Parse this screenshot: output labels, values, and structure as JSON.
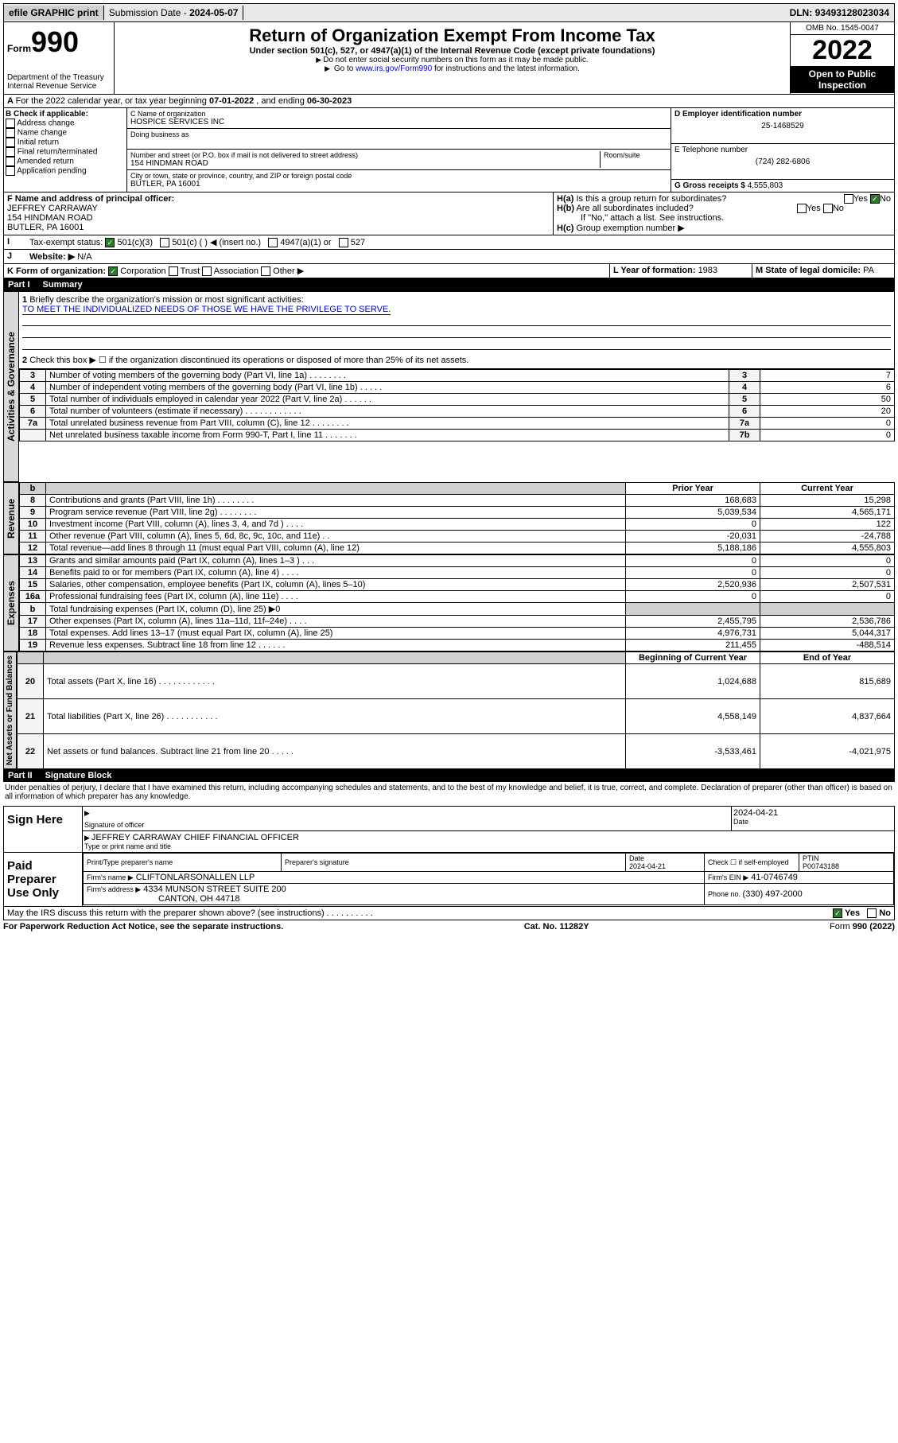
{
  "topbar": {
    "efile": "efile GRAPHIC print",
    "submission_label": "Submission Date - ",
    "submission_date": "2024-05-07",
    "dln_label": "DLN: ",
    "dln": "93493128023034"
  },
  "header": {
    "form_prefix": "Form",
    "form_no": "990",
    "dept": "Department of the Treasury\nInternal Revenue Service",
    "title": "Return of Organization Exempt From Income Tax",
    "subtitle": "Under section 501(c), 527, or 4947(a)(1) of the Internal Revenue Code (except private foundations)",
    "note1": "Do not enter social security numbers on this form as it may be made public.",
    "note2_pre": "Go to ",
    "note2_link": "www.irs.gov/Form990",
    "note2_post": " for instructions and the latest information.",
    "omb": "OMB No. 1545-0047",
    "year": "2022",
    "otp": "Open to Public Inspection"
  },
  "sectionA": {
    "text_pre": "For the 2022 calendar year, or tax year beginning ",
    "begin": "07-01-2022",
    "mid": " , and ending ",
    "end": "06-30-2023"
  },
  "boxB": {
    "label": "B Check if applicable:",
    "items": [
      "Address change",
      "Name change",
      "Initial return",
      "Final return/terminated",
      "Amended return",
      "Application pending"
    ]
  },
  "boxC": {
    "name_label": "C Name of organization",
    "name": "HOSPICE SERVICES INC",
    "dba_label": "Doing business as",
    "addr_label": "Number and street (or P.O. box if mail is not delivered to street address)",
    "room_label": "Room/suite",
    "addr": "154 HINDMAN ROAD",
    "city_label": "City or town, state or province, country, and ZIP or foreign postal code",
    "city": "BUTLER, PA  16001"
  },
  "boxD": {
    "label": "D Employer identification number",
    "value": "25-1468529"
  },
  "boxE": {
    "label": "E Telephone number",
    "value": "(724) 282-6806"
  },
  "boxG": {
    "label": "G Gross receipts $ ",
    "value": "4,555,803"
  },
  "boxF": {
    "label": "F Name and address of principal officer:",
    "name": "JEFFREY CARRAWAY",
    "addr1": "154 HINDMAN ROAD",
    "addr2": "BUTLER, PA  16001"
  },
  "boxH": {
    "ha": "Is this a group return for subordinates?",
    "hb": "Are all subordinates included?",
    "hnote": "If \"No,\" attach a list. See instructions.",
    "hc": "Group exemption number ▶",
    "yes": "Yes",
    "no": "No"
  },
  "boxI": {
    "label": "Tax-exempt status:",
    "opts": [
      "501(c)(3)",
      "501(c) (  ) ◀ (insert no.)",
      "4947(a)(1) or",
      "527"
    ]
  },
  "boxJ": {
    "label": "Website: ▶",
    "value": "N/A"
  },
  "boxK": {
    "label": "K Form of organization:",
    "opts": [
      "Corporation",
      "Trust",
      "Association",
      "Other ▶"
    ]
  },
  "boxL": {
    "label": "L Year of formation: ",
    "value": "1983"
  },
  "boxM": {
    "label": "M State of legal domicile: ",
    "value": "PA"
  },
  "part1": {
    "num": "Part I",
    "title": "Summary"
  },
  "summary": {
    "q1_label": "Briefly describe the organization's mission or most significant activities:",
    "q1_text": "TO MEET THE INDIVIDUALIZED NEEDS OF THOSE WE HAVE THE PRIVILEGE TO SERVE.",
    "q2": "Check this box ▶ ☐  if the organization discontinued its operations or disposed of more than 25% of its net assets.",
    "sections": {
      "gov": "Activities & Governance",
      "rev": "Revenue",
      "exp": "Expenses",
      "net": "Net Assets or Fund Balances"
    },
    "col_prior": "Prior Year",
    "col_current": "Current Year",
    "col_begin": "Beginning of Current Year",
    "col_end": "End of Year",
    "gov_rows": [
      {
        "n": "3",
        "d": "Number of voting members of the governing body (Part VI, line 1a)  .    .    .    .    .    .    .    .",
        "rn": "3",
        "v": "7"
      },
      {
        "n": "4",
        "d": "Number of independent voting members of the governing body (Part VI, line 1b)  .    .    .    .    .",
        "rn": "4",
        "v": "6"
      },
      {
        "n": "5",
        "d": "Total number of individuals employed in calendar year 2022 (Part V, line 2a)  .    .    .    .    .    .",
        "rn": "5",
        "v": "50"
      },
      {
        "n": "6",
        "d": "Total number of volunteers (estimate if necessary)  .    .    .    .    .    .    .    .    .    .    .    .",
        "rn": "6",
        "v": "20"
      },
      {
        "n": "7a",
        "d": "Total unrelated business revenue from Part VIII, column (C), line 12  .    .    .    .    .    .    .    .",
        "rn": "7a",
        "v": "0"
      },
      {
        "n": "",
        "d": "Net unrelated business taxable income from Form 990-T, Part I, line 11  .    .    .    .    .    .    .",
        "rn": "7b",
        "v": "0"
      }
    ],
    "rev_rows": [
      {
        "n": "8",
        "d": "Contributions and grants (Part VIII, line 1h)  .    .    .    .    .    .    .    .",
        "p": "168,683",
        "c": "15,298"
      },
      {
        "n": "9",
        "d": "Program service revenue (Part VIII, line 2g)  .    .    .    .    .    .    .    .",
        "p": "5,039,534",
        "c": "4,565,171"
      },
      {
        "n": "10",
        "d": "Investment income (Part VIII, column (A), lines 3, 4, and 7d )  .    .    .    .",
        "p": "0",
        "c": "122"
      },
      {
        "n": "11",
        "d": "Other revenue (Part VIII, column (A), lines 5, 6d, 8c, 9c, 10c, and 11e)  .    .",
        "p": "-20,031",
        "c": "-24,788"
      },
      {
        "n": "12",
        "d": "Total revenue—add lines 8 through 11 (must equal Part VIII, column (A), line 12)",
        "p": "5,188,186",
        "c": "4,555,803"
      }
    ],
    "exp_rows": [
      {
        "n": "13",
        "d": "Grants and similar amounts paid (Part IX, column (A), lines 1–3 )  .    .    .",
        "p": "0",
        "c": "0"
      },
      {
        "n": "14",
        "d": "Benefits paid to or for members (Part IX, column (A), line 4)  .    .    .    .",
        "p": "0",
        "c": "0"
      },
      {
        "n": "15",
        "d": "Salaries, other compensation, employee benefits (Part IX, column (A), lines 5–10)",
        "p": "2,520,936",
        "c": "2,507,531"
      },
      {
        "n": "16a",
        "d": "Professional fundraising fees (Part IX, column (A), line 11e)  .    .    .    .",
        "p": "0",
        "c": "0"
      },
      {
        "n": "b",
        "d": "Total fundraising expenses (Part IX, column (D), line 25) ▶0",
        "p": "grey",
        "c": "grey"
      },
      {
        "n": "17",
        "d": "Other expenses (Part IX, column (A), lines 11a–11d, 11f–24e)  .    .    .    .",
        "p": "2,455,795",
        "c": "2,536,786"
      },
      {
        "n": "18",
        "d": "Total expenses. Add lines 13–17 (must equal Part IX, column (A), line 25)",
        "p": "4,976,731",
        "c": "5,044,317"
      },
      {
        "n": "19",
        "d": "Revenue less expenses. Subtract line 18 from line 12  .    .    .    .    .    .",
        "p": "211,455",
        "c": "-488,514"
      }
    ],
    "net_rows": [
      {
        "n": "20",
        "d": "Total assets (Part X, line 16)  .    .    .    .    .    .    .    .    .    .    .    .",
        "p": "1,024,688",
        "c": "815,689"
      },
      {
        "n": "21",
        "d": "Total liabilities (Part X, line 26)  .    .    .    .    .    .    .    .    .    .    .",
        "p": "4,558,149",
        "c": "4,837,664"
      },
      {
        "n": "22",
        "d": "Net assets or fund balances. Subtract line 21 from line 20  .    .    .    .    .",
        "p": "-3,533,461",
        "c": "-4,021,975"
      }
    ]
  },
  "part2": {
    "num": "Part II",
    "title": "Signature Block"
  },
  "sig": {
    "perjury": "Under penalties of perjury, I declare that I have examined this return, including accompanying schedules and statements, and to the best of my knowledge and belief, it is true, correct, and complete. Declaration of preparer (other than officer) is based on all information of which preparer has any knowledge.",
    "sign_here": "Sign Here",
    "sig_officer": "Signature of officer",
    "date_label": "Date",
    "sig_date": "2024-04-21",
    "officer_name": "JEFFREY CARRAWAY  CHIEF FINANCIAL OFFICER",
    "type_name": "Type or print name and title",
    "paid_label": "Paid Preparer Use Only",
    "pt_name_label": "Print/Type preparer's name",
    "prep_sig_label": "Preparer's signature",
    "prep_date": "2024-04-21",
    "check_self": "Check ☐ if self-employed",
    "ptin_label": "PTIN",
    "ptin": "P00743188",
    "firm_name_label": "Firm's name   ▶",
    "firm_name": "CLIFTONLARSONALLEN LLP",
    "firm_ein_label": "Firm's EIN ▶",
    "firm_ein": "41-0746749",
    "firm_addr_label": "Firm's address ▶",
    "firm_addr1": "4334 MUNSON STREET SUITE 200",
    "firm_addr2": "CANTON, OH  44718",
    "phone_label": "Phone no. ",
    "phone": "(330) 497-2000",
    "may_irs": "May the IRS discuss this return with the preparer shown above? (see instructions)  .    .    .    .    .    .    .    .    .    .",
    "yes": "Yes",
    "no": "No"
  },
  "footer": {
    "pra": "For Paperwork Reduction Act Notice, see the separate instructions.",
    "cat": "Cat. No. 11282Y",
    "form": "Form 990 (2022)"
  }
}
